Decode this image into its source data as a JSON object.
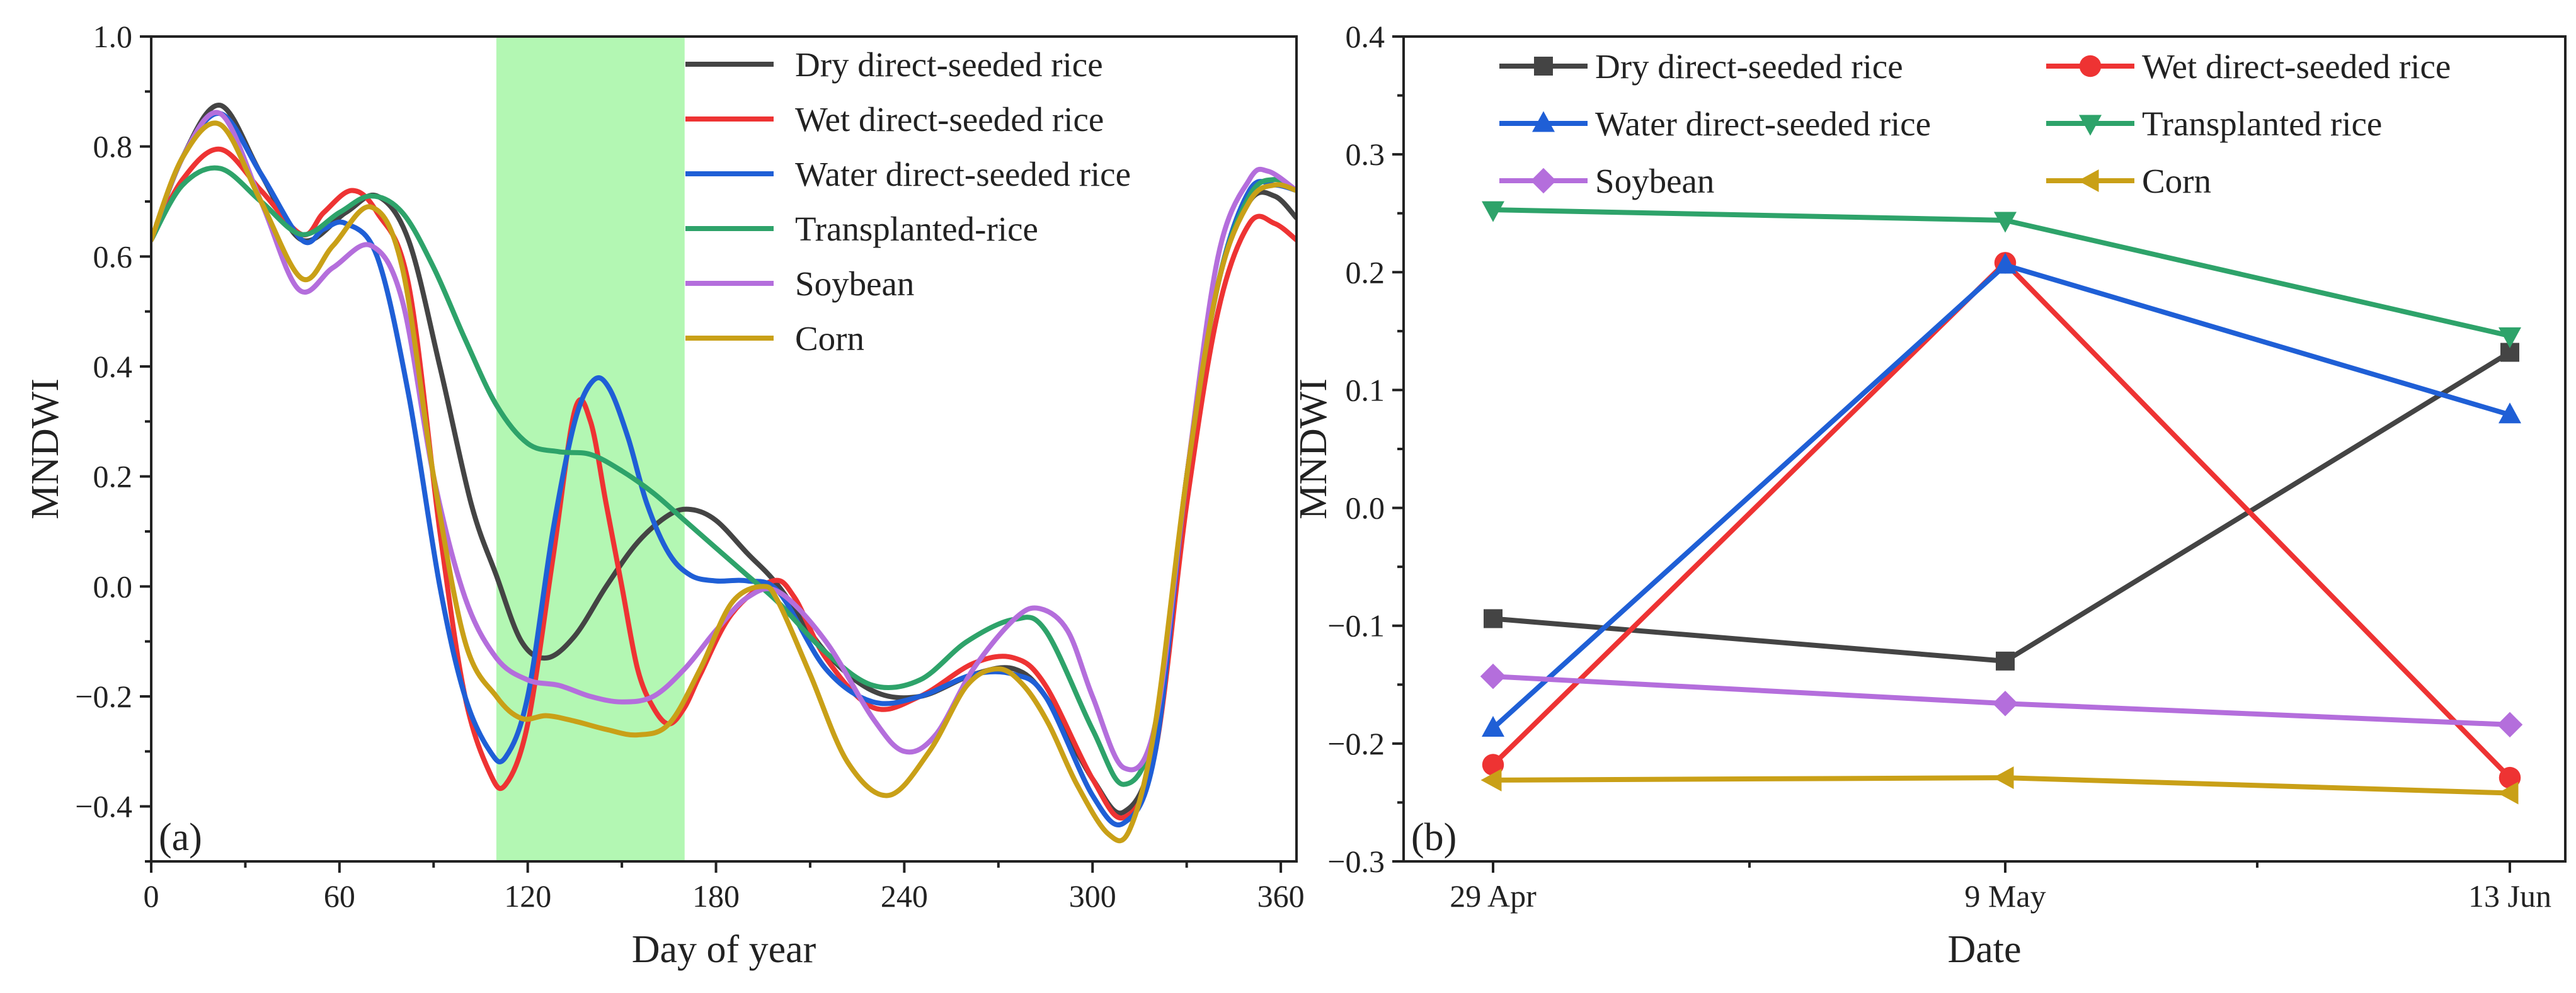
{
  "chart_data": [
    {
      "panel": "(a)",
      "type": "line",
      "xlabel": "Day of year",
      "ylabel": "MNDWI",
      "xlim": [
        0,
        365
      ],
      "ylim": [
        -0.5,
        1.0
      ],
      "xticks": [
        0,
        60,
        120,
        180,
        240,
        300,
        360
      ],
      "xtick_labels": [
        "0",
        "60",
        "120",
        "180",
        "240",
        "300",
        "360"
      ],
      "yticks": [
        -0.4,
        -0.2,
        0.0,
        0.2,
        0.4,
        0.6,
        0.8,
        1.0
      ],
      "ytick_labels": [
        "−0.4",
        "−0.2",
        "0.0",
        "0.2",
        "0.4",
        "0.6",
        "0.8",
        "1.0"
      ],
      "shaded_region": {
        "x_start": 110,
        "x_end": 170,
        "color": "#b3f7b3"
      },
      "legend_position": "top-right",
      "series": [
        {
          "name": "Dry direct-seeded rice",
          "color": "#444444",
          "x": [
            0,
            10,
            22,
            35,
            48,
            62,
            72,
            82,
            92,
            102,
            110,
            118,
            126,
            135,
            145,
            155,
            165,
            172,
            180,
            190,
            200,
            215,
            230,
            245,
            262,
            275,
            285,
            300,
            310,
            320,
            330,
            340,
            350,
            358,
            365
          ],
          "y": [
            0.63,
            0.78,
            0.875,
            0.75,
            0.63,
            0.68,
            0.71,
            0.63,
            0.4,
            0.15,
            0.02,
            -0.1,
            -0.13,
            -0.09,
            0.0,
            0.08,
            0.13,
            0.14,
            0.12,
            0.06,
            0.0,
            -0.12,
            -0.19,
            -0.2,
            -0.16,
            -0.15,
            -0.2,
            -0.35,
            -0.41,
            -0.28,
            0.2,
            0.55,
            0.7,
            0.71,
            0.67
          ]
        },
        {
          "name": "Wet direct-seeded rice",
          "color": "#ee3333",
          "x": [
            0,
            10,
            22,
            35,
            48,
            55,
            64,
            72,
            82,
            92,
            100,
            108,
            113,
            120,
            128,
            135,
            140,
            145,
            150,
            155,
            160,
            165,
            170,
            175,
            185,
            198,
            205,
            215,
            230,
            245,
            262,
            275,
            285,
            300,
            310,
            320,
            330,
            340,
            350,
            358,
            365
          ],
          "y": [
            0.63,
            0.74,
            0.795,
            0.72,
            0.64,
            0.68,
            0.72,
            0.68,
            0.55,
            0.1,
            -0.2,
            -0.34,
            -0.36,
            -0.25,
            0.05,
            0.32,
            0.3,
            0.15,
            0.0,
            -0.15,
            -0.22,
            -0.25,
            -0.22,
            -0.16,
            -0.05,
            0.01,
            -0.02,
            -0.13,
            -0.22,
            -0.2,
            -0.14,
            -0.13,
            -0.18,
            -0.35,
            -0.42,
            -0.3,
            0.15,
            0.5,
            0.66,
            0.66,
            0.63
          ]
        },
        {
          "name": "Water direct-seeded rice",
          "color": "#1f5fd6",
          "x": [
            0,
            10,
            22,
            35,
            48,
            55,
            62,
            72,
            82,
            92,
            100,
            108,
            113,
            120,
            128,
            135,
            141,
            146,
            152,
            158,
            165,
            172,
            180,
            190,
            200,
            215,
            230,
            245,
            262,
            275,
            285,
            300,
            310,
            320,
            330,
            340,
            350,
            358,
            365
          ],
          "y": [
            0.63,
            0.78,
            0.86,
            0.75,
            0.63,
            0.65,
            0.66,
            0.6,
            0.35,
            0.0,
            -0.2,
            -0.3,
            -0.31,
            -0.2,
            0.1,
            0.3,
            0.375,
            0.36,
            0.27,
            0.15,
            0.06,
            0.02,
            0.01,
            0.01,
            -0.01,
            -0.15,
            -0.21,
            -0.2,
            -0.16,
            -0.16,
            -0.2,
            -0.38,
            -0.43,
            -0.3,
            0.2,
            0.55,
            0.72,
            0.73,
            0.72
          ]
        },
        {
          "name": "Transplanted-rice",
          "color": "#2ea36a",
          "x": [
            0,
            10,
            22,
            35,
            48,
            60,
            70,
            80,
            90,
            100,
            110,
            120,
            130,
            140,
            150,
            160,
            170,
            180,
            190,
            200,
            215,
            230,
            245,
            260,
            275,
            285,
            300,
            310,
            320,
            330,
            340,
            350,
            358,
            365
          ],
          "y": [
            0.63,
            0.73,
            0.76,
            0.7,
            0.64,
            0.68,
            0.71,
            0.68,
            0.58,
            0.45,
            0.33,
            0.26,
            0.245,
            0.24,
            0.21,
            0.17,
            0.12,
            0.07,
            0.02,
            -0.03,
            -0.12,
            -0.18,
            -0.17,
            -0.1,
            -0.06,
            -0.08,
            -0.26,
            -0.36,
            -0.25,
            0.2,
            0.55,
            0.71,
            0.74,
            0.72
          ]
        },
        {
          "name": "Soybean",
          "color": "#b46edc",
          "x": [
            0,
            10,
            22,
            35,
            47,
            58,
            70,
            80,
            90,
            100,
            110,
            120,
            130,
            140,
            150,
            160,
            170,
            180,
            190,
            200,
            215,
            230,
            240,
            250,
            262,
            275,
            283,
            292,
            300,
            310,
            320,
            330,
            340,
            350,
            356,
            365
          ],
          "y": [
            0.63,
            0.78,
            0.86,
            0.7,
            0.54,
            0.58,
            0.62,
            0.52,
            0.2,
            -0.02,
            -0.13,
            -0.17,
            -0.18,
            -0.2,
            -0.21,
            -0.2,
            -0.15,
            -0.08,
            -0.02,
            -0.01,
            -0.1,
            -0.24,
            -0.3,
            -0.27,
            -0.15,
            -0.06,
            -0.04,
            -0.08,
            -0.2,
            -0.33,
            -0.25,
            0.2,
            0.6,
            0.74,
            0.755,
            0.72
          ]
        },
        {
          "name": "Corn",
          "color": "#c9a017",
          "x": [
            0,
            10,
            22,
            35,
            48,
            58,
            70,
            80,
            90,
            100,
            110,
            118,
            126,
            135,
            145,
            155,
            165,
            175,
            185,
            195,
            200,
            210,
            222,
            235,
            248,
            260,
            270,
            278,
            286,
            295,
            305,
            312,
            320,
            330,
            340,
            350,
            358,
            365
          ],
          "y": [
            0.63,
            0.78,
            0.84,
            0.7,
            0.56,
            0.62,
            0.69,
            0.58,
            0.2,
            -0.1,
            -0.2,
            -0.24,
            -0.235,
            -0.245,
            -0.26,
            -0.27,
            -0.25,
            -0.15,
            -0.03,
            0.0,
            -0.03,
            -0.16,
            -0.32,
            -0.38,
            -0.3,
            -0.18,
            -0.15,
            -0.18,
            -0.25,
            -0.36,
            -0.45,
            -0.44,
            -0.25,
            0.2,
            0.55,
            0.7,
            0.73,
            0.72
          ]
        }
      ]
    },
    {
      "panel": "(b)",
      "type": "line",
      "xlabel": "Date",
      "ylabel": "MNDWI",
      "categories": [
        "29 Apr",
        "9 May",
        "13 Jun"
      ],
      "ylim": [
        -0.3,
        0.4
      ],
      "yticks": [
        -0.3,
        -0.2,
        -0.1,
        0.0,
        0.1,
        0.2,
        0.3,
        0.4
      ],
      "ytick_labels": [
        "−0.3",
        "−0.2",
        "−0.1",
        "0.0",
        "0.1",
        "0.2",
        "0.3",
        "0.4"
      ],
      "legend_position": "top",
      "series": [
        {
          "name": "Dry direct-seeded rice",
          "color": "#444444",
          "marker": "square",
          "values": [
            -0.094,
            -0.13,
            0.132
          ]
        },
        {
          "name": "Wet direct-seeded rice",
          "color": "#ee3333",
          "marker": "circle",
          "values": [
            -0.218,
            0.208,
            -0.229
          ]
        },
        {
          "name": "Water direct-seeded rice",
          "color": "#1f5fd6",
          "marker": "triangle-up",
          "values": [
            -0.187,
            0.206,
            0.079
          ]
        },
        {
          "name": "Transplanted rice",
          "color": "#2ea36a",
          "marker": "triangle-down",
          "values": [
            0.253,
            0.244,
            0.146
          ]
        },
        {
          "name": "Soybean",
          "color": "#b46edc",
          "marker": "diamond",
          "values": [
            -0.143,
            -0.166,
            -0.184
          ]
        },
        {
          "name": "Corn",
          "color": "#c9a017",
          "marker": "triangle-left",
          "values": [
            -0.231,
            -0.229,
            -0.242
          ]
        }
      ]
    }
  ]
}
